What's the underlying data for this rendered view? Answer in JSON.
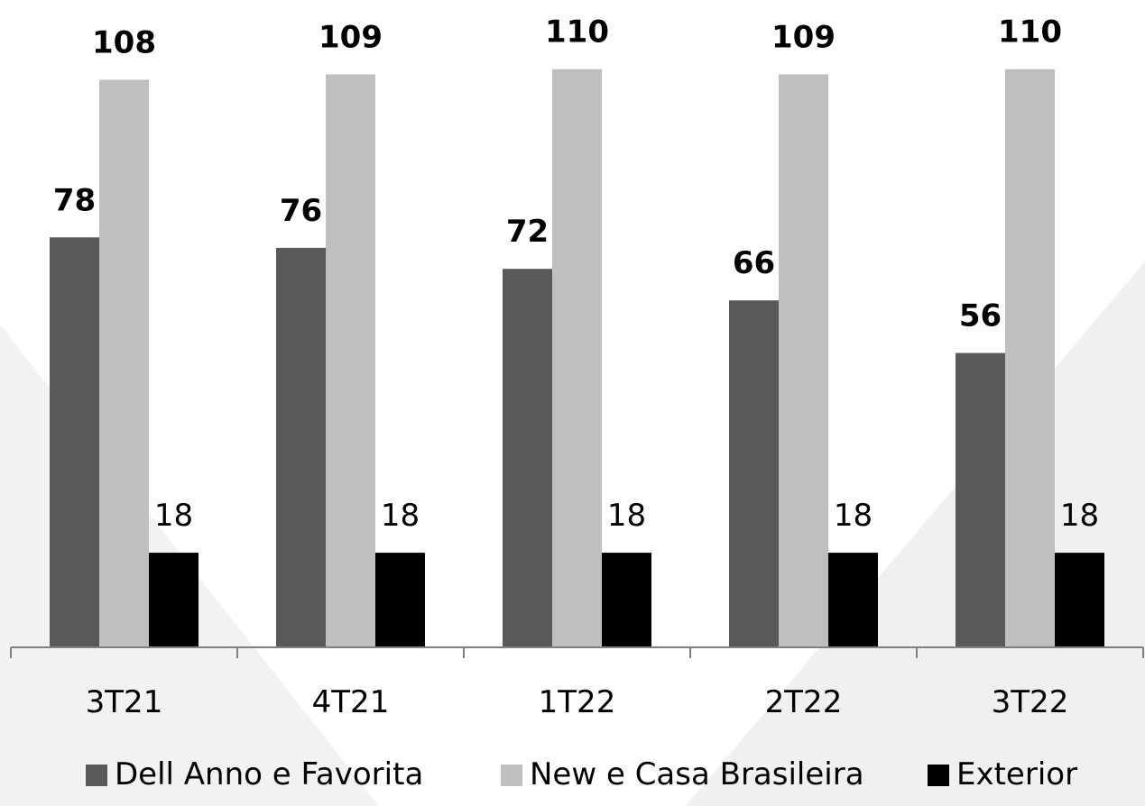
{
  "chart_data": {
    "type": "bar",
    "categories": [
      "3T21",
      "4T21",
      "1T22",
      "2T22",
      "3T22"
    ],
    "series": [
      {
        "name": "Dell Anno e Favorita",
        "values": [
          78,
          76,
          72,
          66,
          56
        ],
        "color": "#595959",
        "label_bold": true
      },
      {
        "name": "New e Casa Brasileira",
        "values": [
          108,
          109,
          110,
          109,
          110
        ],
        "color": "#bfbfbf",
        "label_bold": true
      },
      {
        "name": "Exterior",
        "values": [
          18,
          18,
          18,
          18,
          18
        ],
        "color": "#000000",
        "label_bold": false
      }
    ],
    "ylim": [
      0,
      120
    ],
    "grid": false,
    "legend_position": "bottom",
    "axis_color": "#808080",
    "background_color": "#ffffff"
  }
}
